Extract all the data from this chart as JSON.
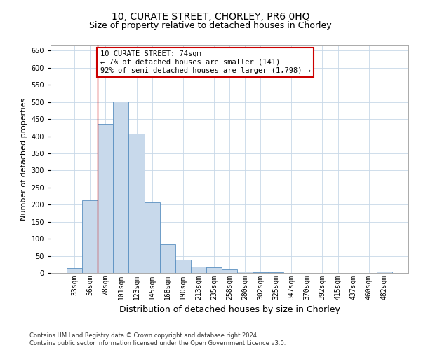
{
  "title_line1": "10, CURATE STREET, CHORLEY, PR6 0HQ",
  "title_line2": "Size of property relative to detached houses in Chorley",
  "xlabel": "Distribution of detached houses by size in Chorley",
  "ylabel": "Number of detached properties",
  "categories": [
    "33sqm",
    "56sqm",
    "78sqm",
    "101sqm",
    "123sqm",
    "145sqm",
    "168sqm",
    "190sqm",
    "213sqm",
    "235sqm",
    "258sqm",
    "280sqm",
    "302sqm",
    "325sqm",
    "347sqm",
    "370sqm",
    "392sqm",
    "415sqm",
    "437sqm",
    "460sqm",
    "482sqm"
  ],
  "values": [
    15,
    212,
    435,
    502,
    408,
    207,
    83,
    38,
    18,
    17,
    10,
    5,
    3,
    2,
    1,
    1,
    1,
    1,
    0,
    0,
    5
  ],
  "bar_color": "#c8d9eb",
  "bar_edge_color": "#5a8fc0",
  "annotation_line1": "10 CURATE STREET: 74sqm",
  "annotation_line2": "← 7% of detached houses are smaller (141)",
  "annotation_line3": "92% of semi-detached houses are larger (1,798) →",
  "annotation_box_color": "#ffffff",
  "annotation_box_edge_color": "#cc0000",
  "ylim": [
    0,
    665
  ],
  "yticks": [
    0,
    50,
    100,
    150,
    200,
    250,
    300,
    350,
    400,
    450,
    500,
    550,
    600,
    650
  ],
  "footer_line1": "Contains HM Land Registry data © Crown copyright and database right 2024.",
  "footer_line2": "Contains public sector information licensed under the Open Government Licence v3.0.",
  "background_color": "#ffffff",
  "grid_color": "#c8d8e8",
  "title_fontsize": 10,
  "subtitle_fontsize": 9,
  "tick_fontsize": 7,
  "xlabel_fontsize": 9,
  "ylabel_fontsize": 8,
  "annotation_fontsize": 7.5,
  "footer_fontsize": 6
}
